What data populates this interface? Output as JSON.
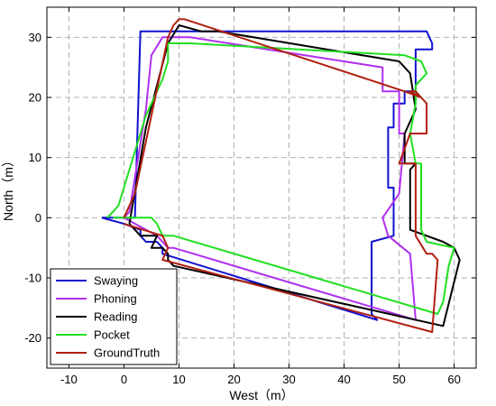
{
  "chart_data": {
    "type": "line",
    "xlabel": "West（m）",
    "ylabel": "North（m）",
    "xlim": [
      -14,
      64
    ],
    "ylim": [
      -25,
      35
    ],
    "xticks": [
      -10,
      0,
      10,
      20,
      30,
      40,
      50,
      60
    ],
    "yticks": [
      -20,
      -10,
      0,
      10,
      20,
      30
    ],
    "grid": true,
    "grid_style": "dashed",
    "legend_position": "bottom-left",
    "series": [
      {
        "name": "Swaying",
        "color": "#1010d0",
        "x": [
          -4,
          0,
          3,
          3,
          4,
          5,
          6,
          7,
          7,
          46,
          46,
          45,
          45,
          49,
          49,
          48,
          48,
          49,
          49,
          51,
          51,
          52,
          53,
          53,
          53,
          55,
          56,
          56,
          55,
          3,
          2,
          -4
        ],
        "y": [
          0,
          -1,
          -2,
          -3,
          -4,
          -4,
          -4,
          -5,
          -6,
          -17,
          -17,
          -16,
          -4,
          -3,
          5,
          5,
          15,
          15,
          19,
          19,
          21,
          21,
          21,
          24,
          28,
          28,
          28,
          29,
          31,
          31,
          0,
          0
        ]
      },
      {
        "name": "Phoning",
        "color": "#b030f0",
        "x": [
          0,
          6,
          7,
          8,
          9,
          9,
          53,
          52,
          48,
          48,
          47,
          50,
          51,
          50,
          50,
          47,
          47,
          12,
          7,
          5,
          4,
          1,
          0
        ],
        "y": [
          0,
          -3,
          -4,
          -5,
          -5,
          -5,
          -17,
          -6,
          -3,
          -3,
          0,
          4,
          14,
          14,
          21,
          21,
          25,
          30,
          30,
          27,
          18,
          1,
          0
        ]
      },
      {
        "name": "Reading",
        "color": "#000000",
        "x": [
          1,
          3,
          6,
          5,
          7,
          8,
          8,
          9,
          58,
          61,
          60,
          58,
          52,
          52,
          53,
          51,
          51,
          53,
          52,
          51,
          50,
          17,
          14,
          10,
          8,
          4,
          1
        ],
        "y": [
          -1,
          -3,
          -3,
          -5,
          -5,
          -6,
          -7,
          -8,
          -18,
          -7,
          -5,
          -4,
          -2,
          8,
          9,
          9,
          14,
          18,
          24,
          25,
          26,
          31,
          31,
          32,
          29,
          15,
          -1
        ]
      },
      {
        "name": "Pocket",
        "color": "#20e020",
        "x": [
          -2,
          3,
          5,
          6,
          7,
          9,
          57,
          58,
          59,
          60,
          60,
          55,
          54,
          54,
          53,
          52,
          52,
          53,
          53,
          55,
          54,
          51,
          12,
          10,
          8,
          8,
          7,
          4,
          -1,
          -3
        ],
        "y": [
          0,
          0,
          0,
          -1,
          -3,
          -3,
          -16,
          -14,
          -8,
          -5,
          -5,
          -4,
          -2,
          9,
          9,
          14,
          14,
          19,
          22,
          24,
          26,
          27,
          29,
          29,
          29,
          26,
          23,
          17,
          2,
          0
        ]
      },
      {
        "name": "GroundTruth",
        "color": "#b02010",
        "x": [
          0,
          7,
          8,
          7,
          56,
          57,
          56,
          56,
          55,
          53,
          53,
          50,
          52,
          55,
          55,
          54,
          52,
          53,
          54,
          51,
          11,
          10,
          9,
          8,
          5,
          2,
          0
        ],
        "y": [
          -1,
          -3,
          -5,
          -7,
          -19,
          -7,
          -6,
          -6,
          -6,
          -3,
          9,
          9,
          14,
          14,
          19,
          20,
          21,
          21,
          20,
          21,
          33,
          33,
          32,
          30,
          17,
          4,
          0
        ]
      }
    ]
  }
}
